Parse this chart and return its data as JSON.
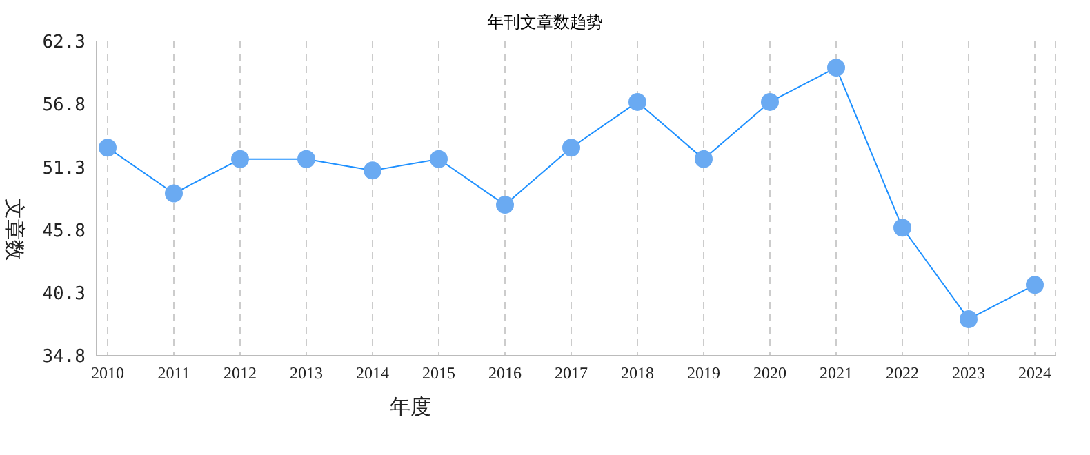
{
  "chart_data": {
    "type": "line",
    "title": "年刊文章数趋势",
    "xlabel": "年度",
    "ylabel": "文章数",
    "categories": [
      "2010",
      "2011",
      "2012",
      "2013",
      "2014",
      "2015",
      "2016",
      "2017",
      "2018",
      "2019",
      "2020",
      "2021",
      "2022",
      "2023",
      "2024"
    ],
    "series": [
      {
        "color": "#1e90ff",
        "values": [
          53,
          49,
          52,
          52,
          51,
          52,
          48,
          53,
          57,
          52,
          57,
          60,
          46,
          38,
          41
        ]
      }
    ],
    "ylim": [
      34.8,
      62.3
    ],
    "yticks": [
      34.8,
      40.3,
      45.8,
      51.3,
      56.8,
      62.3
    ],
    "grid": true,
    "marker": "circle",
    "line_style": "solid"
  }
}
